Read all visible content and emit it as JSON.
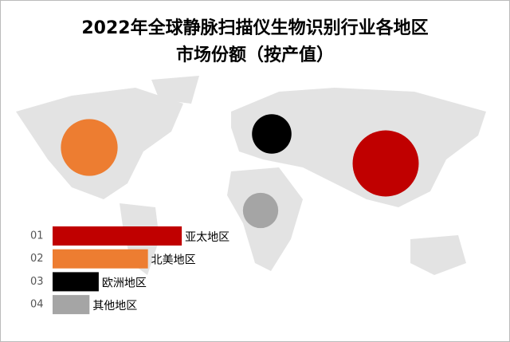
{
  "chart_data": {
    "type": "bar",
    "title": [
      "2022年全球静脉扫描仪生物识别行业各地区",
      "市场份额（按产值）"
    ],
    "ranks": [
      "01",
      "02",
      "03",
      "04"
    ],
    "categories": [
      "亚太地区",
      "北美地区",
      "欧洲地区",
      "其他地区"
    ],
    "values": [
      42,
      31,
      15,
      12
    ],
    "colors": [
      "#c00000",
      "#ed7d31",
      "#000000",
      "#a5a5a5"
    ]
  }
}
